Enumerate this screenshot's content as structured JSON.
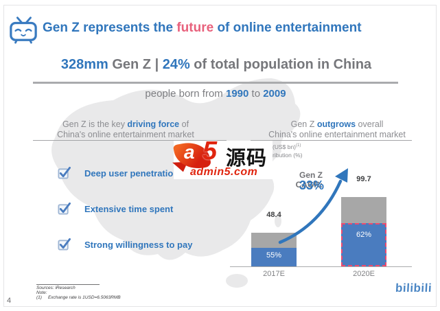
{
  "colors": {
    "accent_blue": "#3076bc",
    "accent_pink": "#e8617c",
    "text_gray": "#7c7d81",
    "bar_gray": "#a7a7a7",
    "bar_blue": "#4a7cbf",
    "highlight_dash_pink": "#ee4a6e",
    "map_gray": "#e9e9ea",
    "brand_blue": "#4b86c4",
    "watermark_red": "#e0250f"
  },
  "title": {
    "pre": "Gen Z represents the ",
    "highlight": "future",
    "post": " of online entertainment"
  },
  "headline": {
    "stat": "328mm",
    "mid": " Gen Z | ",
    "pct": "24%",
    "rest": " of total population in China"
  },
  "tagline": {
    "pre": "people born from ",
    "year_from": "1990",
    "mid": " to ",
    "year_to": "2009"
  },
  "left_panel": {
    "heading_pre": "Gen Z is the key ",
    "heading_em": "driving force",
    "heading_post": " of",
    "heading_line2": "China's online entertainment market",
    "items": [
      {
        "label": "Deep user penetration"
      },
      {
        "label": "Extensive time spent"
      },
      {
        "label": "Strong willingness to pay"
      }
    ]
  },
  "right_panel": {
    "heading_pre": "Gen Z ",
    "heading_em": "outgrows",
    "heading_post": " overall",
    "heading_line2": "China's online entertainment market",
    "legend_line1": "(US$ bn)",
    "legend_line1_sup": "(1)",
    "legend_line2": "ribution (%)"
  },
  "chart_data": {
    "type": "bar",
    "subtype": "stacked-total-with-share",
    "title": "Gen Z outgrows overall China's online entertainment market",
    "categories": [
      "2017E",
      "2020E"
    ],
    "totals": [
      48.4,
      99.7
    ],
    "total_labels": [
      "48.4",
      "99.7"
    ],
    "genz_contribution_pct": [
      55,
      62
    ],
    "pct_labels": [
      "55%",
      "62%"
    ],
    "series": [
      {
        "name": "(US$ bn)",
        "role": "total-bar",
        "color": "#a7a7a7",
        "values": [
          48.4,
          99.7
        ]
      },
      {
        "name": "contribution (%)",
        "role": "genz-share-bar",
        "color": "#4a7cbf",
        "values": [
          55,
          62
        ]
      }
    ],
    "annotation": {
      "label": "Gen Z CAGR:",
      "value": "33%"
    },
    "highlight": {
      "category": "2020E",
      "style": "pink-dashed-outline"
    },
    "ylim": [
      0,
      110
    ],
    "unit": "US$ bn",
    "grid": false,
    "legend_position": "top-left"
  },
  "watermark": {
    "a": "a",
    "five": "5",
    "cn": "源码",
    "site": "admin5.com"
  },
  "footer": {
    "sources": "Sources: iResearch",
    "note_label": "Note:",
    "note_item_num": "(1)",
    "note_item_text": "Exchange rate is 1USD=6.5063RMB",
    "page_number": "4",
    "brand": "bilibili"
  }
}
